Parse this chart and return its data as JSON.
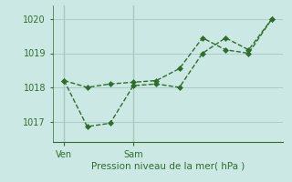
{
  "line1_x": [
    0,
    1,
    2,
    3,
    4,
    5,
    6,
    7,
    8,
    9
  ],
  "line1_y": [
    1018.2,
    1018.0,
    1018.1,
    1018.15,
    1018.2,
    1018.55,
    1019.45,
    1019.1,
    1019.0,
    1020.0
  ],
  "line2_x": [
    0,
    1,
    2,
    3,
    4,
    5,
    6,
    7,
    8,
    9
  ],
  "line2_y": [
    1018.2,
    1016.85,
    1016.95,
    1018.05,
    1018.1,
    1018.0,
    1019.0,
    1019.45,
    1019.1,
    1020.0
  ],
  "color": "#2d6e2d",
  "bg_color": "#cce8e4",
  "grid_color": "#aaccc8",
  "xlabel": "Pression niveau de la mer( hPa )",
  "yticks": [
    1017,
    1018,
    1019,
    1020
  ],
  "xtick_positions": [
    0,
    3
  ],
  "xtick_labels": [
    "Ven",
    "Sam"
  ],
  "vline_x": [
    0,
    3
  ],
  "ylim": [
    1016.4,
    1020.4
  ],
  "xlim": [
    -0.5,
    9.5
  ]
}
